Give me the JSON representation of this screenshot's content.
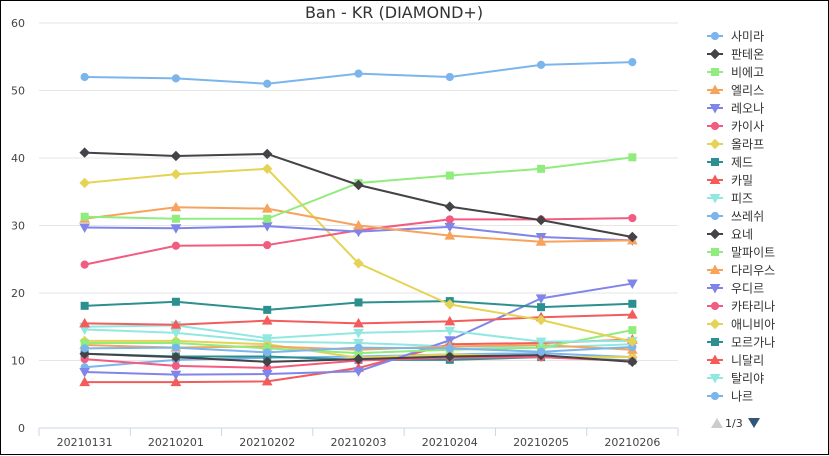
{
  "chart_data": {
    "type": "line",
    "title": "Ban - KR (DIAMOND+)",
    "xlabel": "",
    "ylabel": "",
    "ylim": [
      0,
      60
    ],
    "yticks": [
      0,
      10,
      20,
      30,
      40,
      50,
      60
    ],
    "categories": [
      "20210131",
      "20210201",
      "20210202",
      "20210203",
      "20210204",
      "20210205",
      "20210206"
    ],
    "grid": "horizontal",
    "legend_position": "right",
    "legend_page": "1/3",
    "series": [
      {
        "name": "사미라",
        "color": "#7cb5ec",
        "marker": "circle",
        "values": [
          52.0,
          51.8,
          51.0,
          52.5,
          52.0,
          53.8,
          54.2
        ]
      },
      {
        "name": "판테온",
        "color": "#434348",
        "marker": "diamond",
        "values": [
          40.8,
          40.3,
          40.6,
          36.0,
          32.8,
          30.8,
          28.3
        ]
      },
      {
        "name": "비에고",
        "color": "#90ed7d",
        "marker": "square",
        "values": [
          31.3,
          31.0,
          31.0,
          36.3,
          37.4,
          38.4,
          40.1
        ]
      },
      {
        "name": "엘리스",
        "color": "#f7a35c",
        "marker": "triangle",
        "values": [
          31.0,
          32.7,
          32.5,
          30.0,
          28.5,
          27.6,
          27.8
        ]
      },
      {
        "name": "레오나",
        "color": "#8085e9",
        "marker": "triangle-down",
        "values": [
          29.7,
          29.6,
          29.9,
          29.1,
          29.8,
          28.3,
          27.8
        ]
      },
      {
        "name": "카이사",
        "color": "#f15c80",
        "marker": "circle",
        "values": [
          24.2,
          27.0,
          27.1,
          29.3,
          30.9,
          30.9,
          31.1
        ]
      },
      {
        "name": "올라프",
        "color": "#e4d354",
        "marker": "diamond",
        "values": [
          36.3,
          37.6,
          38.4,
          24.4,
          18.3,
          16.0,
          12.8
        ]
      },
      {
        "name": "제드",
        "color": "#2b908f",
        "marker": "square",
        "values": [
          18.1,
          18.7,
          17.5,
          18.6,
          18.8,
          17.9,
          18.4
        ]
      },
      {
        "name": "카밀",
        "color": "#f45b5b",
        "marker": "triangle",
        "values": [
          15.5,
          15.3,
          15.9,
          15.5,
          15.8,
          16.4,
          16.8
        ]
      },
      {
        "name": "피즈",
        "color": "#91e8e1",
        "marker": "triangle-down",
        "values": [
          15.0,
          15.2,
          13.3,
          14.1,
          14.4,
          12.8,
          12.9
        ]
      },
      {
        "name": "쓰레쉬",
        "color": "#7cb5ec",
        "marker": "circle",
        "values": [
          11.8,
          11.9,
          11.2,
          11.9,
          11.8,
          11.3,
          12.0
        ]
      },
      {
        "name": "요네",
        "color": "#434348",
        "marker": "diamond",
        "values": [
          11.0,
          10.5,
          9.8,
          10.2,
          10.6,
          10.8,
          9.8
        ]
      },
      {
        "name": "말파이트",
        "color": "#90ed7d",
        "marker": "square",
        "values": [
          12.6,
          12.6,
          11.8,
          11.1,
          11.6,
          11.9,
          14.5
        ]
      },
      {
        "name": "다리우스",
        "color": "#f7a35c",
        "marker": "triangle",
        "values": [
          12.3,
          11.9,
          12.1,
          11.6,
          12.1,
          12.3,
          11.6
        ]
      },
      {
        "name": "우디르",
        "color": "#8085e9",
        "marker": "triangle-down",
        "values": [
          8.3,
          7.9,
          8.0,
          8.4,
          13.0,
          19.2,
          21.4
        ]
      },
      {
        "name": "카타리나",
        "color": "#f15c80",
        "marker": "circle",
        "values": [
          10.2,
          9.2,
          8.9,
          10.0,
          10.4,
          10.5,
          9.9
        ]
      },
      {
        "name": "애니비아",
        "color": "#e4d354",
        "marker": "diamond",
        "values": [
          12.9,
          12.9,
          12.4,
          10.4,
          10.9,
          10.5,
          10.5
        ]
      },
      {
        "name": "모르가나",
        "color": "#2b908f",
        "marker": "square",
        "values": [
          11.0,
          10.6,
          10.6,
          10.1,
          10.1,
          10.5,
          10.0
        ]
      },
      {
        "name": "니달리",
        "color": "#f45b5b",
        "marker": "triangle",
        "values": [
          6.8,
          6.8,
          6.9,
          8.9,
          12.4,
          12.6,
          13.1
        ]
      },
      {
        "name": "탈리야",
        "color": "#91e8e1",
        "marker": "triangle-down",
        "values": [
          14.6,
          14.1,
          12.8,
          12.6,
          12.1,
          11.9,
          12.4
        ]
      },
      {
        "name": "나르",
        "color": "#7cb5ec",
        "marker": "circle",
        "values": [
          9.0,
          10.1,
          10.4,
          10.6,
          10.9,
          11.1,
          10.5
        ]
      }
    ]
  }
}
